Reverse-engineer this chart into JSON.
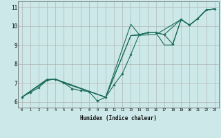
{
  "title": "",
  "xlabel": "Humidex (Indice chaleur)",
  "ylabel": "",
  "bg_color": "#cce8e8",
  "grid_color": "#aaaaaa",
  "line_color": "#1a6b5a",
  "xlim": [
    -0.5,
    23.5
  ],
  "ylim": [
    5.7,
    11.3
  ],
  "xticks": [
    0,
    1,
    2,
    3,
    4,
    5,
    6,
    7,
    8,
    9,
    10,
    11,
    12,
    13,
    14,
    15,
    16,
    17,
    18,
    19,
    20,
    21,
    22,
    23
  ],
  "yticks": [
    6,
    7,
    8,
    9,
    10,
    11
  ],
  "line1_x": [
    0,
    1,
    2,
    3,
    4,
    5,
    6,
    7,
    8,
    9,
    10,
    11,
    12,
    13,
    14,
    15,
    16,
    17,
    18,
    19,
    20,
    21,
    22,
    23
  ],
  "line1_y": [
    6.25,
    6.5,
    6.75,
    7.15,
    7.2,
    7.0,
    6.7,
    6.6,
    6.55,
    6.05,
    6.25,
    6.9,
    7.5,
    8.5,
    9.55,
    9.65,
    9.65,
    9.55,
    9.05,
    10.35,
    10.05,
    10.4,
    10.85,
    10.9
  ],
  "line2_x": [
    0,
    3,
    4,
    5,
    10,
    13,
    14,
    15,
    16,
    17,
    19,
    20,
    21,
    22,
    23
  ],
  "line2_y": [
    6.25,
    7.15,
    7.2,
    7.0,
    6.25,
    10.1,
    9.55,
    9.65,
    9.65,
    9.55,
    10.35,
    10.05,
    10.4,
    10.85,
    10.9
  ],
  "line3_x": [
    0,
    3,
    4,
    10,
    13,
    14,
    15,
    16,
    17,
    18,
    19,
    20,
    21,
    22,
    23
  ],
  "line3_y": [
    6.25,
    7.2,
    7.2,
    6.25,
    9.5,
    9.55,
    9.65,
    9.65,
    9.0,
    9.0,
    10.35,
    10.05,
    10.4,
    10.85,
    10.9
  ],
  "line4_x": [
    0,
    3,
    4,
    10,
    13,
    16,
    19,
    20,
    21,
    22,
    23
  ],
  "line4_y": [
    6.25,
    7.15,
    7.2,
    6.25,
    9.5,
    9.55,
    10.35,
    10.05,
    10.4,
    10.85,
    10.9
  ]
}
